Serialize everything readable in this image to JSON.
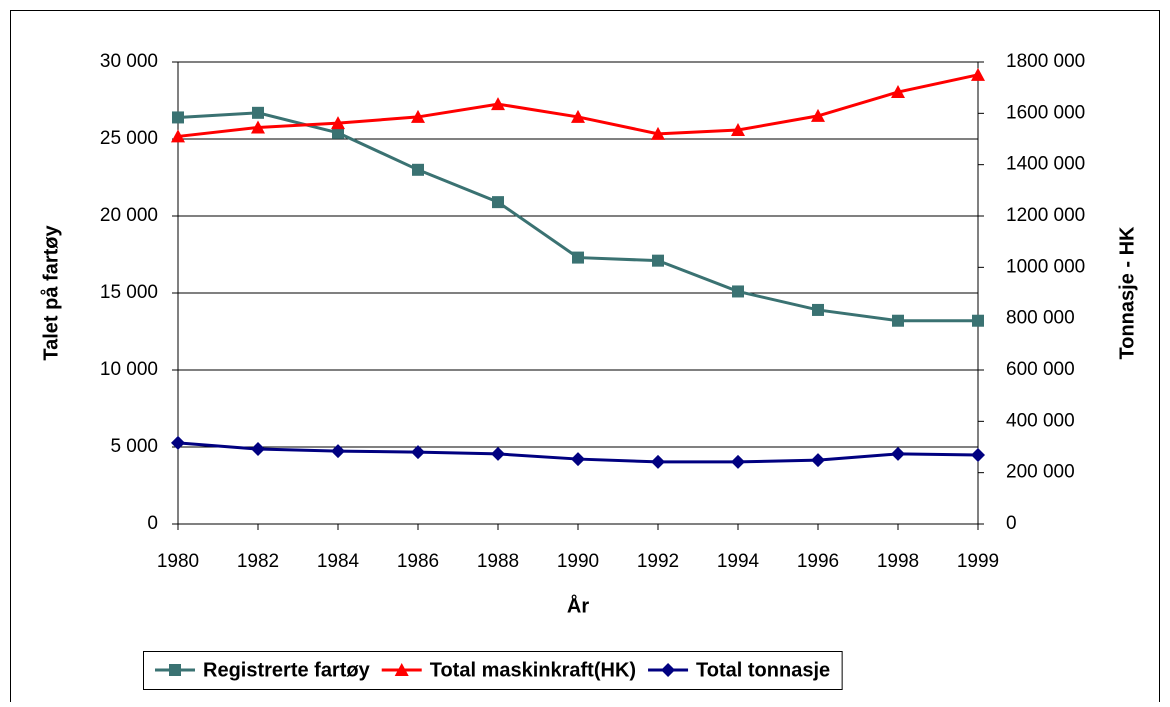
{
  "chart_data": {
    "type": "line",
    "x_label": "År",
    "y_label": "Talet på fartøy",
    "y2_label": "Tonnasje - HK",
    "categories": [
      "1980",
      "1982",
      "1984",
      "1986",
      "1988",
      "1990",
      "1992",
      "1994",
      "1996",
      "1998",
      "1999"
    ],
    "series": [
      {
        "name": "Registrerte fartøy",
        "color": "#3a7272",
        "marker": "square",
        "axis": "y",
        "values": [
          26400,
          26700,
          25400,
          23000,
          20900,
          17300,
          17100,
          15100,
          13900,
          13200,
          13200
        ]
      },
      {
        "name": "Total maskinkraft(HK)",
        "color": "#ff0000",
        "marker": "triangle",
        "axis": "y2",
        "values": [
          1510000,
          1545000,
          1562000,
          1586000,
          1636000,
          1586000,
          1520000,
          1535000,
          1590000,
          1683000,
          1750000
        ]
      },
      {
        "name": "Total tonnasje",
        "color": "#000080",
        "marker": "diamond",
        "axis": "y2",
        "values": [
          316000,
          292000,
          284000,
          280000,
          273000,
          253000,
          242000,
          242000,
          249000,
          273000,
          269000
        ]
      }
    ],
    "ylim": [
      0,
      30000
    ],
    "yticks": [
      0,
      {
        "value": 5000,
        "label": "5 000"
      },
      {
        "value": 10000,
        "label": "10 000"
      },
      {
        "value": 15000,
        "label": "15 000"
      },
      {
        "value": 20000,
        "label": "20 000"
      },
      {
        "value": 25000,
        "label": "25 000"
      },
      {
        "value": 30000,
        "label": "30 000"
      }
    ],
    "y2lim": [
      0,
      1800000
    ],
    "y2ticks": [
      0,
      {
        "value": 200000,
        "label": "200 000"
      },
      {
        "value": 400000,
        "label": "400 000"
      },
      {
        "value": 600000,
        "label": "600 000"
      },
      {
        "value": 800000,
        "label": "800 000"
      },
      {
        "value": 1000000,
        "label": "1000 000"
      },
      {
        "value": 1200000,
        "label": "1200 000"
      },
      {
        "value": 1400000,
        "label": "1400 000"
      },
      {
        "value": 1600000,
        "label": "1600 000"
      },
      {
        "value": 1800000,
        "label": "1800 000"
      }
    ],
    "grid": true,
    "legend": "bottom"
  }
}
